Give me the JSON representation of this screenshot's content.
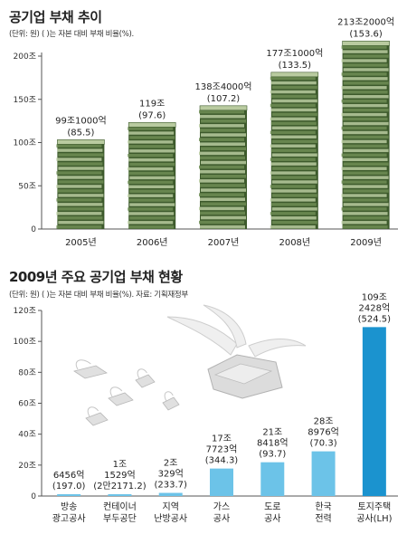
{
  "colors": {
    "money_dark": "#3d5a2c",
    "money_mid": "#6f8d55",
    "money_light": "#b9cba0",
    "bar_light_blue": "#6cc3e8",
    "bar_dark_blue": "#1b93cf",
    "axis": "#555555"
  },
  "top": {
    "title": "공기업 부채 추이",
    "subtitle": "(단위: 원) ( )는 자본 대비 부채 비율(%)."
  },
  "bottom": {
    "title": "2009년 주요 공기업 부채 현황",
    "subtitle": "(단위: 원) ( )는 자본 대비 부채 비율(%). 자료: 기획재정부"
  },
  "chart_data": [
    {
      "type": "bar",
      "categories": [
        "2005년",
        "2006년",
        "2007년",
        "2008년",
        "2009년"
      ],
      "values": [
        99.1,
        119,
        138.4,
        177.1,
        213.2
      ],
      "value_labels": [
        "99조1000억",
        "119조",
        "138조4000억",
        "177조1000억",
        "213조2000억"
      ],
      "ratio_labels": [
        "(85.5)",
        "(97.6)",
        "(107.2)",
        "(133.5)",
        "(153.6)"
      ],
      "ratios": [
        85.5,
        97.6,
        107.2,
        133.5,
        153.6
      ],
      "yticks": [
        "0",
        "50조",
        "100조",
        "150조",
        "200조"
      ],
      "ytick_values": [
        0,
        50,
        100,
        150,
        200
      ],
      "ylim": [
        0,
        215
      ]
    },
    {
      "type": "bar",
      "categories": [
        [
          "방송",
          "광고공사"
        ],
        [
          "컨테이너",
          "부두공단"
        ],
        [
          "지역",
          "난방공사"
        ],
        [
          "가스",
          "공사"
        ],
        [
          "도로",
          "공사"
        ],
        [
          "한국",
          "전력"
        ],
        [
          "토지주택",
          "공사(LH)"
        ]
      ],
      "values": [
        0.6456,
        1.1529,
        2.0329,
        17.7723,
        21.8418,
        28.8976,
        109.2428
      ],
      "value_labels": [
        [
          "6456억"
        ],
        [
          "1조",
          "1529억"
        ],
        [
          "2조",
          "329억"
        ],
        [
          "17조",
          "7723억"
        ],
        [
          "21조",
          "8418억"
        ],
        [
          "28조",
          "8976억"
        ],
        [
          "109조",
          "2428억"
        ]
      ],
      "ratio_labels": [
        "(197.0)",
        "(2만2171.2)",
        "(233.7)",
        "(344.3)",
        "(93.7)",
        "(70.3)",
        "(524.5)"
      ],
      "yticks": [
        "0",
        "20조",
        "40조",
        "60조",
        "80조",
        "100조",
        "120조"
      ],
      "ytick_values": [
        0,
        20,
        40,
        60,
        80,
        100,
        120
      ],
      "ylim": [
        0,
        120
      ]
    }
  ]
}
